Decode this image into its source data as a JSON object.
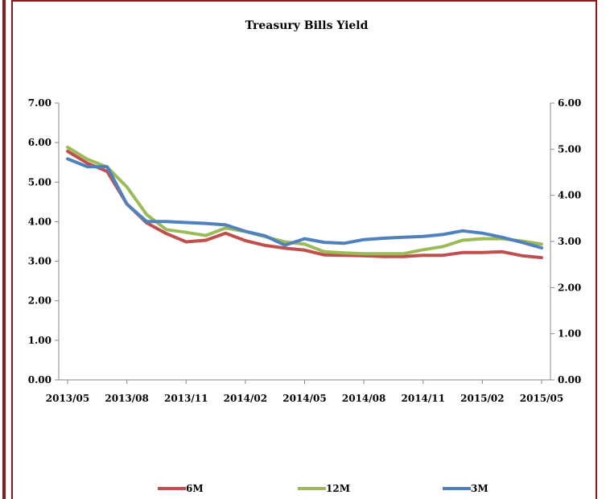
{
  "chart_data": {
    "type": "line",
    "title": "Treasury Bills Yield",
    "x_tick_labels": [
      "2013/05",
      "2013/08",
      "2013/11",
      "2014/02",
      "2014/05",
      "2014/08",
      "2014/11",
      "2015/02",
      "2015/05"
    ],
    "x": [
      "2013/05",
      "2013/06",
      "2013/07",
      "2013/08",
      "2013/09",
      "2013/10",
      "2013/11",
      "2013/12",
      "2014/01",
      "2014/02",
      "2014/03",
      "2014/04",
      "2014/05",
      "2014/06",
      "2014/07",
      "2014/08",
      "2014/09",
      "2014/10",
      "2014/11",
      "2014/12",
      "2015/01",
      "2015/02",
      "2015/03",
      "2015/04",
      "2015/05"
    ],
    "left_axis": {
      "min": 0,
      "max": 7,
      "step": 1,
      "tick_labels": [
        "0.00",
        "1.00",
        "2.00",
        "3.00",
        "4.00",
        "5.00",
        "6.00",
        "7.00"
      ]
    },
    "right_axis": {
      "min": 0,
      "max": 6,
      "step": 1,
      "tick_labels": [
        "0.00",
        "1.00",
        "2.00",
        "3.00",
        "4.00",
        "5.00",
        "6.00"
      ]
    },
    "legend_position": "bottom",
    "series": [
      {
        "name": "6M",
        "axis": "left",
        "color": "#c0504d",
        "values": [
          5.78,
          5.48,
          5.27,
          4.45,
          3.97,
          3.7,
          3.49,
          3.53,
          3.71,
          3.52,
          3.4,
          3.33,
          3.28,
          3.16,
          3.15,
          3.14,
          3.12,
          3.12,
          3.15,
          3.15,
          3.22,
          3.22,
          3.24,
          3.14,
          3.09
        ]
      },
      {
        "name": "12M",
        "axis": "left",
        "color": "#9bbb59",
        "values": [
          5.88,
          5.58,
          5.38,
          4.88,
          4.18,
          3.8,
          3.73,
          3.65,
          3.84,
          3.75,
          3.62,
          3.49,
          3.43,
          3.24,
          3.21,
          3.19,
          3.19,
          3.19,
          3.29,
          3.37,
          3.53,
          3.57,
          3.57,
          3.51,
          3.43
        ]
      },
      {
        "name": "3M",
        "axis": "right",
        "color": "#4f81bd",
        "values": [
          4.79,
          4.62,
          4.62,
          3.81,
          3.43,
          3.43,
          3.41,
          3.39,
          3.36,
          3.22,
          3.12,
          2.92,
          3.06,
          2.98,
          2.96,
          3.04,
          3.07,
          3.09,
          3.11,
          3.15,
          3.23,
          3.18,
          3.09,
          2.98,
          2.86
        ]
      }
    ]
  }
}
